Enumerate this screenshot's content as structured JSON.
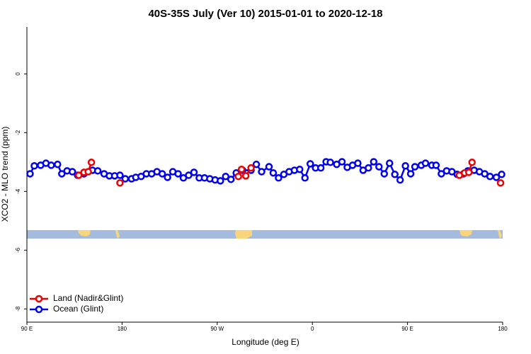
{
  "chart_data": {
    "type": "line",
    "title": "40S-35S July (Ver 10)   2015-01-01 to 2020-12-18",
    "x_label": "Longitude (deg E)",
    "y_label": "XCO2 - MLO trend (ppm)",
    "xlim": [
      90,
      540
    ],
    "xticks": [
      {
        "value": 90,
        "label": "90 E"
      },
      180,
      {
        "value": 270,
        "label": "90 W"
      },
      {
        "value": 360,
        "label": "0"
      },
      {
        "value": 450,
        "label": "90 E"
      },
      {
        "value": 540,
        "label": "180"
      }
    ],
    "ylim": [
      -8.45,
      1.6
    ],
    "yticks": [
      0,
      -2,
      -4,
      -6,
      -8
    ],
    "legend": "bottom-left",
    "series": [
      {
        "name": "Ocean (Glint)",
        "color": "#0000ee",
        "x": [
          93,
          97,
          103,
          108,
          113,
          119,
          123,
          128,
          133,
          138,
          144,
          152,
          157,
          163,
          168,
          173,
          178,
          183,
          189,
          193,
          198,
          203,
          208,
          213,
          218,
          223,
          228,
          233,
          238,
          243,
          248,
          253,
          258,
          263,
          268,
          273,
          278,
          283,
          288,
          294,
          302,
          307,
          312,
          319,
          323,
          328,
          333,
          338,
          343,
          348,
          353,
          358,
          363,
          368,
          373,
          377,
          383,
          388,
          393,
          398,
          403,
          408,
          413,
          418,
          423,
          428,
          433,
          438,
          443,
          448,
          453,
          457,
          463,
          467,
          473,
          477,
          482,
          487,
          492,
          497,
          503,
          507,
          513,
          518,
          523,
          528,
          534,
          539
        ],
        "values": [
          -3.4,
          -3.13,
          -3.11,
          -3.04,
          -3.11,
          -3.08,
          -3.4,
          -3.3,
          -3.33,
          -3.45,
          -3.4,
          -3.28,
          -3.3,
          -3.4,
          -3.47,
          -3.47,
          -3.45,
          -3.57,
          -3.57,
          -3.52,
          -3.49,
          -3.4,
          -3.4,
          -3.33,
          -3.4,
          -3.52,
          -3.33,
          -3.4,
          -3.54,
          -3.45,
          -3.35,
          -3.54,
          -3.54,
          -3.57,
          -3.61,
          -3.64,
          -3.49,
          -3.59,
          -3.37,
          -3.28,
          -3.28,
          -3.08,
          -3.33,
          -3.16,
          -3.37,
          -3.54,
          -3.42,
          -3.33,
          -3.28,
          -3.25,
          -3.54,
          -3.06,
          -3.2,
          -3.2,
          -2.99,
          -3.01,
          -3.08,
          -2.99,
          -3.18,
          -3.11,
          -3.04,
          -3.28,
          -3.2,
          -2.99,
          -3.16,
          -3.4,
          -3.04,
          -3.42,
          -3.61,
          -3.13,
          -3.4,
          -3.16,
          -3.11,
          -3.04,
          -3.11,
          -3.11,
          -3.4,
          -3.3,
          -3.33,
          -3.42,
          -3.4,
          -3.3,
          -3.28,
          -3.33,
          -3.4,
          -3.49,
          -3.52,
          -3.42
        ]
      },
      {
        "name": "Land (Nadir&Glint)",
        "color": "#ee0000",
        "x": [
          139,
          144,
          148,
          151,
          null,
          178,
          null,
          290,
          293,
          297,
          302,
          null,
          499,
          504,
          508,
          511,
          null,
          538
        ],
        "values": [
          -3.45,
          -3.35,
          -3.33,
          -3.01,
          null,
          -3.71,
          null,
          -3.49,
          -3.25,
          -3.47,
          -3.2,
          null,
          -3.45,
          -3.37,
          -3.35,
          -3.01,
          null,
          -3.71
        ]
      }
    ]
  }
}
